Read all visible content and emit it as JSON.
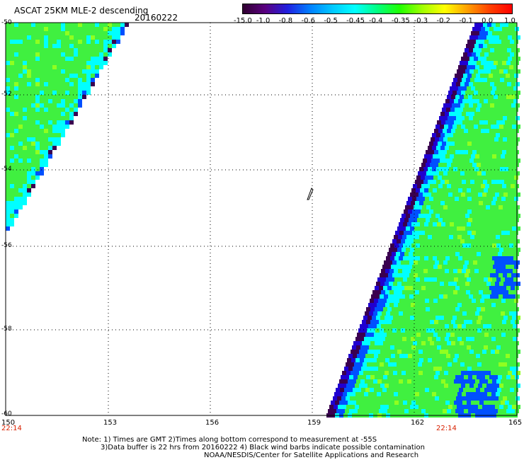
{
  "header": {
    "title": "ASCAT 25KM MLE-2 descending",
    "date": "20160222"
  },
  "colorbar": {
    "labels": [
      "-15.0",
      "-1.0",
      "-0.8",
      "-0.6",
      "-0.5",
      "-0.45",
      "-0.4",
      "-0.35",
      "-0.3",
      "-0.2",
      "-0.1",
      "0.0",
      "1.0"
    ],
    "colors": [
      "#300030",
      "#5a0080",
      "#2020e0",
      "#0080ff",
      "#00c8ff",
      "#00ffff",
      "#00ff80",
      "#20ff00",
      "#a0ff00",
      "#ffff00",
      "#ffa000",
      "#ff4000",
      "#ff0000"
    ]
  },
  "axes": {
    "lat_labels": [
      "-50",
      "-52",
      "-54",
      "-56",
      "-58",
      "-60"
    ],
    "lon_labels": [
      "150",
      "153",
      "156",
      "159",
      "162",
      "165"
    ],
    "time_labels": [
      "22:14",
      "22:14"
    ]
  },
  "notes": {
    "line1": "Note: 1) Times are GMT 2)Times along bottom correspond to measurement at -55S",
    "line2": "3)Data buffer is 22 hrs from 20160222 4) Black wind barbs indicate possible contamination",
    "line3": "NOAA/NESDIS/Center for Satellite Applications and Research"
  },
  "map_colors": {
    "green": "#40f040",
    "cyan": "#00ffff",
    "blue": "#0050ff",
    "dark_blue": "#2000d0",
    "purple": "#3a0050",
    "lime": "#90ff20"
  }
}
